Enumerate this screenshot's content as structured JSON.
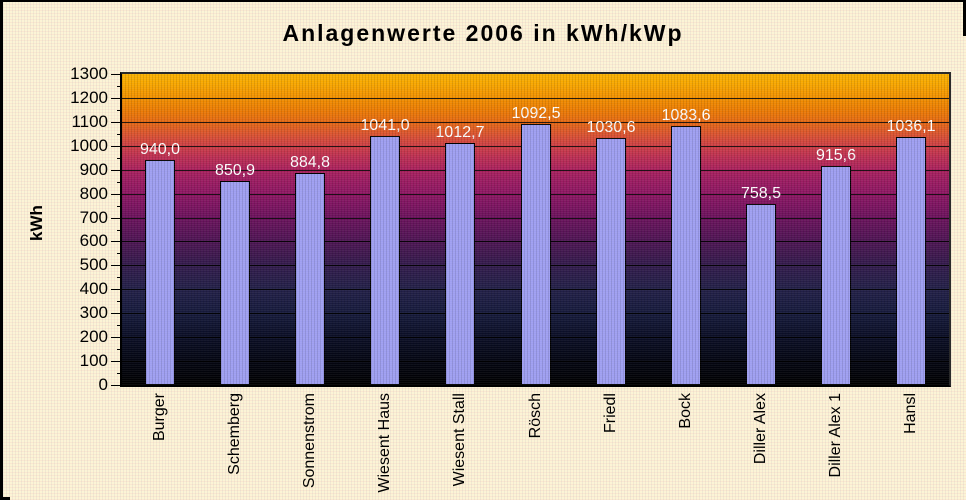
{
  "chart_data": {
    "type": "bar",
    "title": "Anlagenwerte 2006 in kWh/kWp",
    "ylabel": "kWh",
    "xlabel": "",
    "categories": [
      "Burger",
      "Schemberg",
      "Sonnenstrom",
      "Wiesent Haus",
      "Wiesent Stall",
      "Rösch",
      "Friedl",
      "Bock",
      "Diller Alex",
      "Diller Alex 1",
      "Hansl"
    ],
    "values": [
      940.0,
      850.9,
      884.8,
      1041.0,
      1012.7,
      1092.5,
      1030.6,
      1083.6,
      758.5,
      915.6,
      1036.1
    ],
    "value_labels": [
      "940,0",
      "850,9",
      "884,8",
      "1041,0",
      "1012,7",
      "1092,5",
      "1030,6",
      "1083,6",
      "758,5",
      "915,6",
      "1036,1"
    ],
    "ylim": [
      0,
      1300
    ],
    "yticks": [
      0,
      100,
      200,
      300,
      400,
      500,
      600,
      700,
      800,
      900,
      1000,
      1100,
      1200,
      1300
    ],
    "ytick_minor_step": 50,
    "gridlines": "horizontal-major",
    "legend": "none",
    "colors": {
      "bar_fill": "#9E9EF0",
      "bar_border": "#000000",
      "value_label_text": "#FFFFFF",
      "axis_text": "#000000",
      "title_text": "#000000",
      "canvas_background": "#FCF4D6",
      "plot_gradient_top_to_bottom": [
        [
          0,
          "#FBB200"
        ],
        [
          3,
          "#F8A800"
        ],
        [
          7.7,
          "#F19000"
        ],
        [
          11.5,
          "#EC7D04"
        ],
        [
          15.4,
          "#E56A14"
        ],
        [
          19.2,
          "#DB5530"
        ],
        [
          23.1,
          "#CE4046"
        ],
        [
          26.9,
          "#BC2F54"
        ],
        [
          30.8,
          "#AA225E"
        ],
        [
          34.6,
          "#9B1C62"
        ],
        [
          38.5,
          "#8D1763"
        ],
        [
          42.3,
          "#7D1461"
        ],
        [
          46.2,
          "#6C135D"
        ],
        [
          50,
          "#5D1459"
        ],
        [
          53.8,
          "#4E1554"
        ],
        [
          57.7,
          "#40184F"
        ],
        [
          61.5,
          "#331B4D"
        ],
        [
          65.4,
          "#2A1E4A"
        ],
        [
          69.2,
          "#232048"
        ],
        [
          73.1,
          "#1C1D42"
        ],
        [
          76.9,
          "#161A3C"
        ],
        [
          80.8,
          "#101430"
        ],
        [
          84.6,
          "#0B0E26"
        ],
        [
          88.5,
          "#070A1C"
        ],
        [
          92.3,
          "#040612"
        ],
        [
          96.2,
          "#02030A"
        ],
        [
          100,
          "#000000"
        ]
      ]
    }
  }
}
